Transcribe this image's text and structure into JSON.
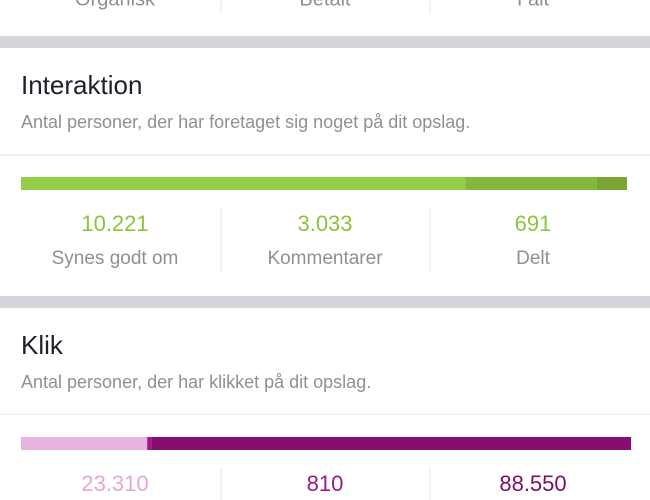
{
  "top_labels": [
    "Organisk",
    "Betalt",
    "I alt"
  ],
  "sections": [
    {
      "title": "Interaktion",
      "subtitle": "Antal personer, der har foretaget sig noget på dit opslag.",
      "stats": [
        {
          "value": 10221,
          "label": "10.221",
          "name": "Synes godt om",
          "color": "#8cc43c",
          "bar_color": "#94cd47"
        },
        {
          "value": 3033,
          "label": "3.033",
          "name": "Kommentarer",
          "color": "#8cc43c",
          "bar_color": "#84b83c"
        },
        {
          "value": 691,
          "label": "691",
          "name": "Delt",
          "color": "#8cc43c",
          "bar_color": "#7aa535"
        }
      ]
    },
    {
      "title": "Klik",
      "subtitle": "Antal personer, der har klikket på dit opslag.",
      "stats": [
        {
          "value": 23310,
          "label": "23.310",
          "color": "#e3a9d8",
          "bar_color": "#e8b3dd"
        },
        {
          "value": 810,
          "label": "810",
          "color": "#9c1b86",
          "bar_color": "#a0188a"
        },
        {
          "value": 88550,
          "label": "88.550",
          "color": "#7d0f65",
          "bar_color": "#850e6e"
        }
      ]
    }
  ]
}
